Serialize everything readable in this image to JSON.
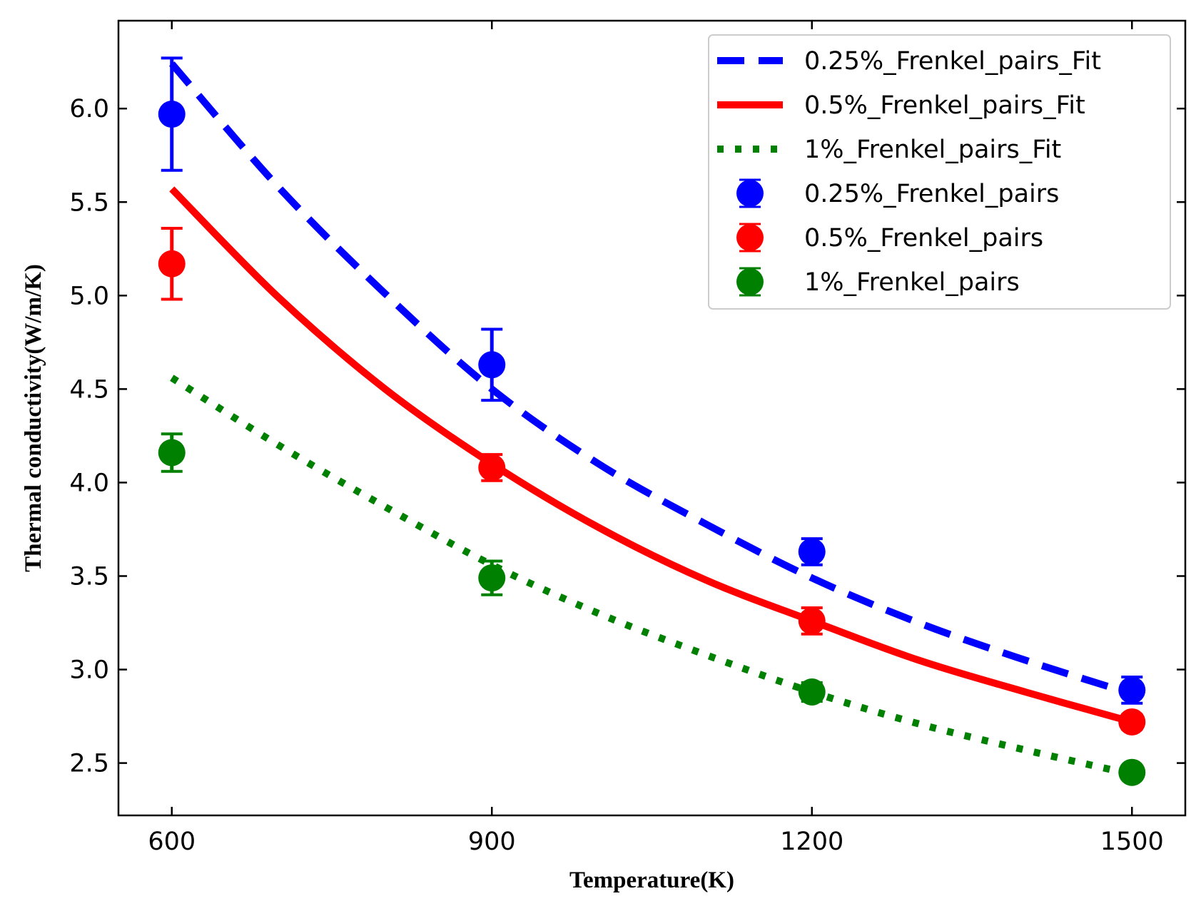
{
  "chart_data": {
    "type": "scatter",
    "title": "",
    "xlabel": "Temperature(K)",
    "ylabel": "Thermal conductivity(W/m/K)",
    "xlim": [
      550,
      1550
    ],
    "ylim": [
      2.22,
      6.47
    ],
    "xticks": [
      600,
      900,
      1200,
      1500
    ],
    "yticks": [
      2.5,
      3.0,
      3.5,
      4.0,
      4.5,
      5.0,
      5.5,
      6.0
    ],
    "xtick_labels": [
      "600",
      "900",
      "1200",
      "1500"
    ],
    "ytick_labels": [
      "2.5",
      "3.0",
      "3.5",
      "4.0",
      "4.5",
      "5.0",
      "5.5",
      "6.0"
    ],
    "grid": false,
    "legend_position": "top-right",
    "fit_series": [
      {
        "name": "0.25%_Frenkel_pairs_Fit",
        "color": "#0000ff",
        "style": "dashed",
        "x": [
          600,
          700,
          800,
          900,
          1000,
          1100,
          1200,
          1300,
          1400,
          1500
        ],
        "y": [
          6.24,
          5.58,
          5.01,
          4.5,
          4.1,
          3.78,
          3.49,
          3.25,
          3.05,
          2.87
        ]
      },
      {
        "name": "0.5%_Frenkel_pairs_Fit",
        "color": "#ff0000",
        "style": "solid",
        "x": [
          600,
          700,
          800,
          900,
          1000,
          1100,
          1200,
          1300,
          1400,
          1500
        ],
        "y": [
          5.57,
          4.99,
          4.5,
          4.1,
          3.76,
          3.48,
          3.26,
          3.05,
          2.88,
          2.72
        ]
      },
      {
        "name": "1%_Frenkel_pairs_Fit",
        "color": "#008000",
        "style": "dotted",
        "x": [
          600,
          700,
          800,
          900,
          1000,
          1100,
          1200,
          1300,
          1400,
          1500
        ],
        "y": [
          4.56,
          4.2,
          3.87,
          3.56,
          3.3,
          3.08,
          2.88,
          2.71,
          2.57,
          2.44
        ]
      }
    ],
    "data_series": [
      {
        "name": "0.25%_Frenkel_pairs",
        "color": "#0000ff",
        "x": [
          600,
          900,
          1200,
          1500
        ],
        "y": [
          5.97,
          4.63,
          3.63,
          2.89
        ],
        "yerr": [
          0.3,
          0.19,
          0.07,
          0.07
        ]
      },
      {
        "name": "0.5%_Frenkel_pairs",
        "color": "#ff0000",
        "x": [
          600,
          900,
          1200,
          1500
        ],
        "y": [
          5.17,
          4.08,
          3.26,
          2.72
        ],
        "yerr": [
          0.19,
          0.07,
          0.07,
          0.04
        ]
      },
      {
        "name": "1%_Frenkel_pairs",
        "color": "#008000",
        "x": [
          600,
          900,
          1200,
          1500
        ],
        "y": [
          4.16,
          3.49,
          2.88,
          2.45
        ],
        "yerr": [
          0.1,
          0.09,
          0.05,
          0.03
        ]
      }
    ]
  }
}
